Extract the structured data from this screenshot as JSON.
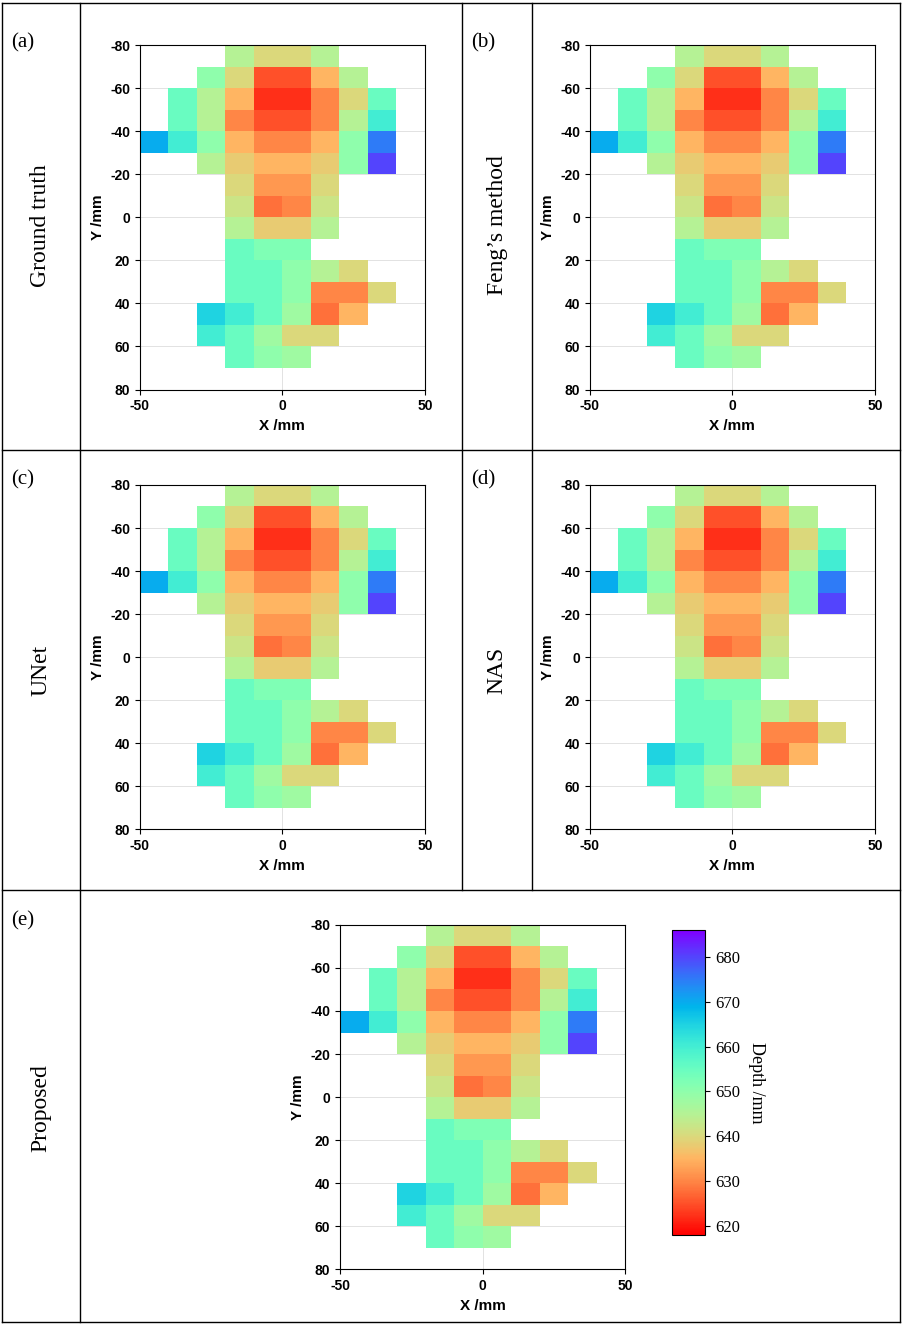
{
  "chart_data": [
    {
      "type": "heatmap",
      "panel_label": "(a)",
      "method": "Ground truth",
      "xlabel": "X /mm",
      "ylabel": "Y /mm",
      "xlim": [
        -50,
        50
      ],
      "xticks": [
        -50,
        0,
        50
      ],
      "ylim": [
        80,
        -80
      ],
      "yticks": [
        -80,
        -60,
        -40,
        -20,
        0,
        20,
        40,
        60,
        80
      ],
      "grid": true,
      "color_range": [
        618,
        686
      ],
      "x_edges": [
        -50,
        -40,
        -30,
        -20,
        -10,
        0,
        10,
        20,
        30,
        40,
        50
      ],
      "y_edges": [
        -80,
        -70,
        -60,
        -50,
        -40,
        -30,
        -20,
        -10,
        0,
        10,
        20,
        30,
        40,
        50,
        60,
        70
      ],
      "cells": [
        [
          null,
          null,
          null,
          645,
          640,
          640,
          645,
          null,
          null,
          null
        ],
        [
          null,
          null,
          650,
          640,
          625,
          625,
          635,
          645,
          null,
          null
        ],
        [
          null,
          655,
          645,
          635,
          622,
          622,
          630,
          640,
          655,
          null
        ],
        [
          null,
          655,
          645,
          630,
          625,
          625,
          630,
          645,
          660,
          null
        ],
        [
          670,
          660,
          650,
          635,
          630,
          630,
          635,
          650,
          675,
          null
        ],
        [
          null,
          null,
          645,
          638,
          635,
          635,
          638,
          650,
          680,
          null
        ],
        [
          null,
          null,
          null,
          640,
          632,
          632,
          640,
          null,
          null,
          null
        ],
        [
          null,
          null,
          null,
          642,
          628,
          630,
          642,
          null,
          null,
          null
        ],
        [
          null,
          null,
          null,
          645,
          638,
          638,
          645,
          null,
          null,
          null
        ],
        [
          null,
          null,
          null,
          655,
          652,
          652,
          null,
          null,
          null,
          null
        ],
        [
          null,
          null,
          null,
          655,
          655,
          650,
          645,
          640,
          null,
          null
        ],
        [
          null,
          null,
          null,
          655,
          655,
          650,
          630,
          630,
          640,
          null
        ],
        [
          null,
          null,
          665,
          660,
          655,
          648,
          628,
          635,
          null,
          null
        ],
        [
          null,
          null,
          660,
          655,
          648,
          640,
          640,
          null,
          null,
          null
        ],
        [
          null,
          null,
          null,
          655,
          650,
          648,
          null,
          null,
          null,
          null
        ]
      ]
    },
    {
      "type": "heatmap",
      "panel_label": "(b)",
      "method": "Feng’s method",
      "xlabel": "X /mm",
      "ylabel": "Y /mm",
      "xlim": [
        -50,
        50
      ],
      "xticks": [
        -50,
        0,
        50
      ],
      "ylim": [
        80,
        -80
      ],
      "yticks": [
        -80,
        -60,
        -40,
        -20,
        0,
        20,
        40,
        60,
        80
      ],
      "grid": true,
      "color_range": [
        618,
        686
      ],
      "x_edges": [
        -50,
        -40,
        -30,
        -20,
        -10,
        0,
        10,
        20,
        30,
        40,
        50
      ],
      "y_edges": [
        -80,
        -70,
        -60,
        -50,
        -40,
        -30,
        -20,
        -10,
        0,
        10,
        20,
        30,
        40,
        50,
        60,
        70
      ],
      "cells": [
        [
          null,
          null,
          null,
          645,
          640,
          640,
          645,
          null,
          null,
          null
        ],
        [
          null,
          null,
          650,
          640,
          625,
          625,
          635,
          645,
          null,
          null
        ],
        [
          null,
          655,
          645,
          635,
          622,
          622,
          630,
          640,
          655,
          null
        ],
        [
          null,
          655,
          645,
          630,
          625,
          625,
          630,
          645,
          660,
          null
        ],
        [
          670,
          660,
          650,
          635,
          630,
          630,
          635,
          650,
          675,
          null
        ],
        [
          null,
          null,
          645,
          638,
          635,
          635,
          638,
          650,
          680,
          null
        ],
        [
          null,
          null,
          null,
          640,
          632,
          632,
          640,
          null,
          null,
          null
        ],
        [
          null,
          null,
          null,
          642,
          628,
          630,
          642,
          null,
          null,
          null
        ],
        [
          null,
          null,
          null,
          645,
          638,
          638,
          645,
          null,
          null,
          null
        ],
        [
          null,
          null,
          null,
          655,
          652,
          652,
          null,
          null,
          null,
          null
        ],
        [
          null,
          null,
          null,
          655,
          655,
          650,
          645,
          640,
          null,
          null
        ],
        [
          null,
          null,
          null,
          655,
          655,
          650,
          630,
          630,
          640,
          null
        ],
        [
          null,
          null,
          665,
          660,
          655,
          648,
          628,
          635,
          null,
          null
        ],
        [
          null,
          null,
          660,
          655,
          648,
          640,
          640,
          null,
          null,
          null
        ],
        [
          null,
          null,
          null,
          655,
          650,
          648,
          null,
          null,
          null,
          null
        ]
      ]
    },
    {
      "type": "heatmap",
      "panel_label": "(c)",
      "method": "UNet",
      "xlabel": "X /mm",
      "ylabel": "Y /mm",
      "xlim": [
        -50,
        50
      ],
      "xticks": [
        -50,
        0,
        50
      ],
      "ylim": [
        80,
        -80
      ],
      "yticks": [
        -80,
        -60,
        -40,
        -20,
        0,
        20,
        40,
        60,
        80
      ],
      "grid": true,
      "color_range": [
        618,
        686
      ],
      "x_edges": [
        -50,
        -40,
        -30,
        -20,
        -10,
        0,
        10,
        20,
        30,
        40,
        50
      ],
      "y_edges": [
        -80,
        -70,
        -60,
        -50,
        -40,
        -30,
        -20,
        -10,
        0,
        10,
        20,
        30,
        40,
        50,
        60,
        70
      ],
      "cells": [
        [
          null,
          null,
          null,
          645,
          640,
          640,
          645,
          null,
          null,
          null
        ],
        [
          null,
          null,
          650,
          640,
          625,
          625,
          635,
          645,
          null,
          null
        ],
        [
          null,
          655,
          645,
          635,
          622,
          622,
          630,
          640,
          655,
          null
        ],
        [
          null,
          655,
          645,
          630,
          625,
          625,
          630,
          645,
          660,
          null
        ],
        [
          670,
          660,
          650,
          635,
          630,
          630,
          635,
          650,
          675,
          null
        ],
        [
          null,
          null,
          645,
          638,
          635,
          635,
          638,
          650,
          680,
          null
        ],
        [
          null,
          null,
          null,
          640,
          632,
          632,
          640,
          null,
          null,
          null
        ],
        [
          null,
          null,
          null,
          642,
          628,
          630,
          642,
          null,
          null,
          null
        ],
        [
          null,
          null,
          null,
          645,
          638,
          638,
          645,
          null,
          null,
          null
        ],
        [
          null,
          null,
          null,
          655,
          652,
          652,
          null,
          null,
          null,
          null
        ],
        [
          null,
          null,
          null,
          655,
          655,
          650,
          645,
          640,
          null,
          null
        ],
        [
          null,
          null,
          null,
          655,
          655,
          650,
          630,
          630,
          640,
          null
        ],
        [
          null,
          null,
          665,
          660,
          655,
          648,
          628,
          635,
          null,
          null
        ],
        [
          null,
          null,
          660,
          655,
          648,
          640,
          640,
          null,
          null,
          null
        ],
        [
          null,
          null,
          null,
          655,
          650,
          648,
          null,
          null,
          null,
          null
        ]
      ]
    },
    {
      "type": "heatmap",
      "panel_label": "(d)",
      "method": "NAS",
      "xlabel": "X /mm",
      "ylabel": "Y /mm",
      "xlim": [
        -50,
        50
      ],
      "xticks": [
        -50,
        0,
        50
      ],
      "ylim": [
        80,
        -80
      ],
      "yticks": [
        -80,
        -60,
        -40,
        -20,
        0,
        20,
        40,
        60,
        80
      ],
      "grid": true,
      "color_range": [
        618,
        686
      ],
      "x_edges": [
        -50,
        -40,
        -30,
        -20,
        -10,
        0,
        10,
        20,
        30,
        40,
        50
      ],
      "y_edges": [
        -80,
        -70,
        -60,
        -50,
        -40,
        -30,
        -20,
        -10,
        0,
        10,
        20,
        30,
        40,
        50,
        60,
        70
      ],
      "cells": [
        [
          null,
          null,
          null,
          645,
          640,
          640,
          645,
          null,
          null,
          null
        ],
        [
          null,
          null,
          650,
          640,
          625,
          625,
          635,
          645,
          null,
          null
        ],
        [
          null,
          655,
          645,
          635,
          622,
          622,
          630,
          640,
          655,
          null
        ],
        [
          null,
          655,
          645,
          630,
          625,
          625,
          630,
          645,
          660,
          null
        ],
        [
          670,
          660,
          650,
          635,
          630,
          630,
          635,
          650,
          675,
          null
        ],
        [
          null,
          null,
          645,
          638,
          635,
          635,
          638,
          650,
          680,
          null
        ],
        [
          null,
          null,
          null,
          640,
          632,
          632,
          640,
          null,
          null,
          null
        ],
        [
          null,
          null,
          null,
          642,
          628,
          630,
          642,
          null,
          null,
          null
        ],
        [
          null,
          null,
          null,
          645,
          638,
          638,
          645,
          null,
          null,
          null
        ],
        [
          null,
          null,
          null,
          655,
          652,
          652,
          null,
          null,
          null,
          null
        ],
        [
          null,
          null,
          null,
          655,
          655,
          650,
          645,
          640,
          null,
          null
        ],
        [
          null,
          null,
          null,
          655,
          655,
          650,
          630,
          630,
          640,
          null
        ],
        [
          null,
          null,
          665,
          660,
          655,
          648,
          628,
          635,
          null,
          null
        ],
        [
          null,
          null,
          660,
          655,
          648,
          640,
          640,
          null,
          null,
          null
        ],
        [
          null,
          null,
          null,
          655,
          650,
          648,
          null,
          null,
          null,
          null
        ]
      ]
    },
    {
      "type": "heatmap",
      "panel_label": "(e)",
      "method": "Proposed",
      "xlabel": "X /mm",
      "ylabel": "Y /mm",
      "xlim": [
        -50,
        50
      ],
      "xticks": [
        -50,
        0,
        50
      ],
      "ylim": [
        80,
        -80
      ],
      "yticks": [
        -80,
        -60,
        -40,
        -20,
        0,
        20,
        40,
        60,
        80
      ],
      "grid": true,
      "color_range": [
        618,
        686
      ],
      "colorbar_label": "Depth /mm",
      "colorbar_ticks": [
        620,
        630,
        640,
        650,
        660,
        670,
        680
      ],
      "x_edges": [
        -50,
        -40,
        -30,
        -20,
        -10,
        0,
        10,
        20,
        30,
        40,
        50
      ],
      "y_edges": [
        -80,
        -70,
        -60,
        -50,
        -40,
        -30,
        -20,
        -10,
        0,
        10,
        20,
        30,
        40,
        50,
        60,
        70
      ],
      "cells": [
        [
          null,
          null,
          null,
          645,
          640,
          640,
          645,
          null,
          null,
          null
        ],
        [
          null,
          null,
          650,
          640,
          625,
          625,
          635,
          645,
          null,
          null
        ],
        [
          null,
          655,
          645,
          635,
          622,
          622,
          630,
          640,
          655,
          null
        ],
        [
          null,
          655,
          645,
          630,
          625,
          625,
          630,
          645,
          660,
          null
        ],
        [
          670,
          660,
          650,
          635,
          630,
          630,
          635,
          650,
          675,
          null
        ],
        [
          null,
          null,
          645,
          638,
          635,
          635,
          638,
          650,
          680,
          null
        ],
        [
          null,
          null,
          null,
          640,
          632,
          632,
          640,
          null,
          null,
          null
        ],
        [
          null,
          null,
          null,
          642,
          628,
          630,
          642,
          null,
          null,
          null
        ],
        [
          null,
          null,
          null,
          645,
          638,
          638,
          645,
          null,
          null,
          null
        ],
        [
          null,
          null,
          null,
          655,
          652,
          652,
          null,
          null,
          null,
          null
        ],
        [
          null,
          null,
          null,
          655,
          655,
          650,
          645,
          640,
          null,
          null
        ],
        [
          null,
          null,
          null,
          655,
          655,
          650,
          630,
          630,
          640,
          null
        ],
        [
          null,
          null,
          665,
          660,
          655,
          648,
          628,
          635,
          null,
          null
        ],
        [
          null,
          null,
          660,
          655,
          648,
          640,
          640,
          null,
          null,
          null
        ],
        [
          null,
          null,
          null,
          655,
          650,
          648,
          null,
          null,
          null,
          null
        ]
      ]
    }
  ]
}
